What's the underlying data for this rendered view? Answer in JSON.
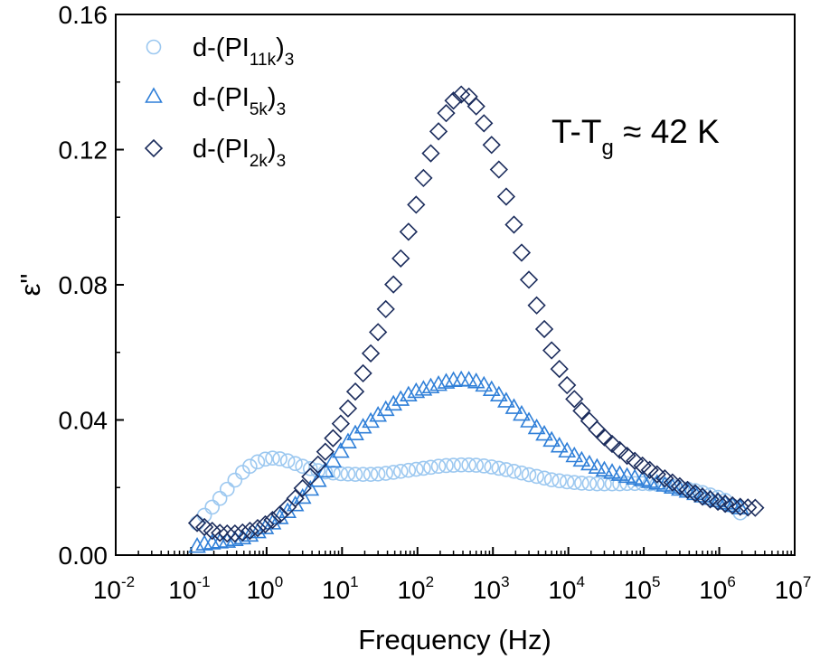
{
  "chart_data": {
    "type": "scatter",
    "title": "",
    "xlabel": "Frequency (Hz)",
    "ylabel": "ε\"",
    "x_scale": "log",
    "xlim": [
      0.01,
      10000000
    ],
    "ylim": [
      0,
      0.16
    ],
    "x_ticks": [
      {
        "base": "10",
        "exp": "-2"
      },
      {
        "base": "10",
        "exp": "-1"
      },
      {
        "base": "10",
        "exp": "0"
      },
      {
        "base": "10",
        "exp": "1"
      },
      {
        "base": "10",
        "exp": "2"
      },
      {
        "base": "10",
        "exp": "3"
      },
      {
        "base": "10",
        "exp": "4"
      },
      {
        "base": "10",
        "exp": "5"
      },
      {
        "base": "10",
        "exp": "6"
      },
      {
        "base": "10",
        "exp": "7"
      }
    ],
    "y_ticks": [
      "0.00",
      "0.04",
      "0.08",
      "0.12",
      "0.16"
    ],
    "legend_position": "top-left",
    "grid": false,
    "annotation": {
      "main": "T-T",
      "sub": "g",
      "tail": " ≈ 42 K"
    },
    "series": [
      {
        "name": {
          "pre": "d-(PI",
          "sub1": "11k",
          "mid": ")",
          "sub2": "3"
        },
        "marker": "circle",
        "color": "#9cc8f0",
        "points": [
          [
            0.12,
            0.0095
          ],
          [
            0.15,
            0.0118
          ],
          [
            0.19,
            0.0142
          ],
          [
            0.24,
            0.0168
          ],
          [
            0.3,
            0.0195
          ],
          [
            0.38,
            0.0222
          ],
          [
            0.48,
            0.0245
          ],
          [
            0.6,
            0.0263
          ],
          [
            0.76,
            0.0276
          ],
          [
            0.96,
            0.0284
          ],
          [
            1.2,
            0.0287
          ],
          [
            1.5,
            0.0285
          ],
          [
            1.9,
            0.0279
          ],
          [
            2.4,
            0.0271
          ],
          [
            3.0,
            0.0263
          ],
          [
            3.8,
            0.0256
          ],
          [
            4.8,
            0.025
          ],
          [
            6.0,
            0.0246
          ],
          [
            7.6,
            0.0243
          ],
          [
            9.6,
            0.0241
          ],
          [
            12,
            0.024
          ],
          [
            15,
            0.0239
          ],
          [
            19,
            0.0239
          ],
          [
            24,
            0.0239
          ],
          [
            30,
            0.024
          ],
          [
            38,
            0.0242
          ],
          [
            48,
            0.0245
          ],
          [
            60,
            0.0248
          ],
          [
            76,
            0.0251
          ],
          [
            96,
            0.0254
          ],
          [
            120,
            0.0257
          ],
          [
            150,
            0.026
          ],
          [
            190,
            0.0263
          ],
          [
            240,
            0.0265
          ],
          [
            300,
            0.0266
          ],
          [
            380,
            0.0267
          ],
          [
            480,
            0.0267
          ],
          [
            600,
            0.0266
          ],
          [
            760,
            0.0264
          ],
          [
            960,
            0.0261
          ],
          [
            1200,
            0.0257
          ],
          [
            1500,
            0.0253
          ],
          [
            1900,
            0.0248
          ],
          [
            2400,
            0.0243
          ],
          [
            3000,
            0.0238
          ],
          [
            3800,
            0.0233
          ],
          [
            4800,
            0.0228
          ],
          [
            6000,
            0.0223
          ],
          [
            7600,
            0.022
          ],
          [
            9600,
            0.0217
          ],
          [
            12000,
            0.0215
          ],
          [
            15000,
            0.0213
          ],
          [
            19000,
            0.0212
          ],
          [
            24000,
            0.0211
          ],
          [
            30000,
            0.0211
          ],
          [
            38000,
            0.0211
          ],
          [
            48000,
            0.0211
          ],
          [
            60000,
            0.0212
          ],
          [
            76000,
            0.0212
          ],
          [
            96000,
            0.0212
          ],
          [
            120000,
            0.0211
          ],
          [
            150000,
            0.021
          ],
          [
            190000,
            0.0208
          ],
          [
            240000,
            0.0204
          ],
          [
            300000,
            0.02
          ],
          [
            380000,
            0.0196
          ],
          [
            480000,
            0.0191
          ],
          [
            600000,
            0.0185
          ],
          [
            760000,
            0.0178
          ],
          [
            960000,
            0.0171
          ],
          [
            1200000,
            0.0162
          ],
          [
            1500000,
            0.0146
          ],
          [
            1900000,
            0.0125
          ]
        ]
      },
      {
        "name": {
          "pre": "d-(PI",
          "sub1": "5k",
          "mid": ")",
          "sub2": "3"
        },
        "marker": "triangle",
        "color": "#2f7fd8",
        "points": [
          [
            0.12,
            0.0025
          ],
          [
            0.15,
            0.0032
          ],
          [
            0.19,
            0.0035
          ],
          [
            0.24,
            0.0038
          ],
          [
            0.3,
            0.004
          ],
          [
            0.38,
            0.0045
          ],
          [
            0.48,
            0.005
          ],
          [
            0.6,
            0.0058
          ],
          [
            0.76,
            0.0068
          ],
          [
            0.96,
            0.008
          ],
          [
            1.2,
            0.0094
          ],
          [
            1.5,
            0.011
          ],
          [
            1.9,
            0.0128
          ],
          [
            2.4,
            0.0148
          ],
          [
            3.0,
            0.017
          ],
          [
            3.8,
            0.0194
          ],
          [
            4.8,
            0.022
          ],
          [
            6.0,
            0.0248
          ],
          [
            7.6,
            0.0277
          ],
          [
            9.6,
            0.0306
          ],
          [
            12,
            0.0334
          ],
          [
            15,
            0.0358
          ],
          [
            19,
            0.0378
          ],
          [
            24,
            0.0395
          ],
          [
            30,
            0.0413
          ],
          [
            38,
            0.043
          ],
          [
            48,
            0.0446
          ],
          [
            60,
            0.046
          ],
          [
            76,
            0.0473
          ],
          [
            96,
            0.0483
          ],
          [
            120,
            0.049
          ],
          [
            150,
            0.0497
          ],
          [
            190,
            0.0504
          ],
          [
            240,
            0.0511
          ],
          [
            300,
            0.0516
          ],
          [
            380,
            0.0518
          ],
          [
            480,
            0.0517
          ],
          [
            600,
            0.0512
          ],
          [
            760,
            0.0502
          ],
          [
            960,
            0.0489
          ],
          [
            1200,
            0.0473
          ],
          [
            1500,
            0.0455
          ],
          [
            1900,
            0.0436
          ],
          [
            2400,
            0.0416
          ],
          [
            3000,
            0.0396
          ],
          [
            3800,
            0.0376
          ],
          [
            4800,
            0.0357
          ],
          [
            6000,
            0.0339
          ],
          [
            7600,
            0.0322
          ],
          [
            9600,
            0.0307
          ],
          [
            12000,
            0.0293
          ],
          [
            15000,
            0.028
          ],
          [
            19000,
            0.0269
          ],
          [
            24000,
            0.0259
          ],
          [
            30000,
            0.0251
          ],
          [
            38000,
            0.0244
          ],
          [
            48000,
            0.0238
          ],
          [
            60000,
            0.0232
          ],
          [
            76000,
            0.0227
          ],
          [
            96000,
            0.0222
          ],
          [
            120000,
            0.0217
          ],
          [
            150000,
            0.0212
          ],
          [
            190000,
            0.0206
          ],
          [
            240000,
            0.02
          ],
          [
            300000,
            0.0194
          ],
          [
            380000,
            0.0188
          ],
          [
            480000,
            0.0181
          ],
          [
            600000,
            0.0174
          ],
          [
            760000,
            0.0167
          ],
          [
            960000,
            0.016
          ],
          [
            1200000,
            0.0153
          ],
          [
            1500000,
            0.0146
          ],
          [
            1900000,
            0.0139
          ]
        ]
      },
      {
        "name": {
          "pre": "d-(PI",
          "sub1": "2k",
          "mid": ")",
          "sub2": "3"
        },
        "marker": "diamond",
        "color": "#1b2c5c",
        "points": [
          [
            0.12,
            0.0095
          ],
          [
            0.15,
            0.0083
          ],
          [
            0.19,
            0.0072
          ],
          [
            0.24,
            0.0066
          ],
          [
            0.3,
            0.0064
          ],
          [
            0.38,
            0.0064
          ],
          [
            0.48,
            0.0067
          ],
          [
            0.6,
            0.0072
          ],
          [
            0.76,
            0.008
          ],
          [
            0.96,
            0.0091
          ],
          [
            1.2,
            0.0104
          ],
          [
            1.5,
            0.012
          ],
          [
            1.9,
            0.0142
          ],
          [
            2.4,
            0.0168
          ],
          [
            3.0,
            0.0198
          ],
          [
            3.8,
            0.0232
          ],
          [
            4.8,
            0.0268
          ],
          [
            6.0,
            0.0306
          ],
          [
            7.6,
            0.0346
          ],
          [
            9.6,
            0.0389
          ],
          [
            12,
            0.0434
          ],
          [
            15,
            0.0484
          ],
          [
            19,
            0.0538
          ],
          [
            24,
            0.0597
          ],
          [
            30,
            0.066
          ],
          [
            38,
            0.0728
          ],
          [
            48,
            0.0801
          ],
          [
            60,
            0.0878
          ],
          [
            76,
            0.0957
          ],
          [
            96,
            0.1037
          ],
          [
            120,
            0.1116
          ],
          [
            150,
            0.1189
          ],
          [
            190,
            0.1254
          ],
          [
            240,
            0.1308
          ],
          [
            300,
            0.1345
          ],
          [
            380,
            0.1363
          ],
          [
            480,
            0.1357
          ],
          [
            600,
            0.1328
          ],
          [
            760,
            0.1278
          ],
          [
            960,
            0.1214
          ],
          [
            1200,
            0.1141
          ],
          [
            1500,
            0.1061
          ],
          [
            1900,
            0.0978
          ],
          [
            2400,
            0.0895
          ],
          [
            3000,
            0.0815
          ],
          [
            3800,
            0.0739
          ],
          [
            4800,
            0.0669
          ],
          [
            6000,
            0.0606
          ],
          [
            7600,
            0.0551
          ],
          [
            9600,
            0.0503
          ],
          [
            12000,
            0.0462
          ],
          [
            15000,
            0.0427
          ],
          [
            19000,
            0.0397
          ],
          [
            24000,
            0.0371
          ],
          [
            30000,
            0.0349
          ],
          [
            38000,
            0.0329
          ],
          [
            48000,
            0.0311
          ],
          [
            60000,
            0.0294
          ],
          [
            76000,
            0.0279
          ],
          [
            96000,
            0.0265
          ],
          [
            120000,
            0.0252
          ],
          [
            150000,
            0.0239
          ],
          [
            190000,
            0.0227
          ],
          [
            240000,
            0.0215
          ],
          [
            300000,
            0.0204
          ],
          [
            380000,
            0.0193
          ],
          [
            480000,
            0.0183
          ],
          [
            600000,
            0.0173
          ],
          [
            760000,
            0.0165
          ],
          [
            960000,
            0.0158
          ],
          [
            1200000,
            0.0152
          ],
          [
            1500000,
            0.0147
          ],
          [
            1900000,
            0.0143
          ],
          [
            2400000,
            0.0141
          ],
          [
            3000000,
            0.014
          ]
        ]
      }
    ]
  }
}
